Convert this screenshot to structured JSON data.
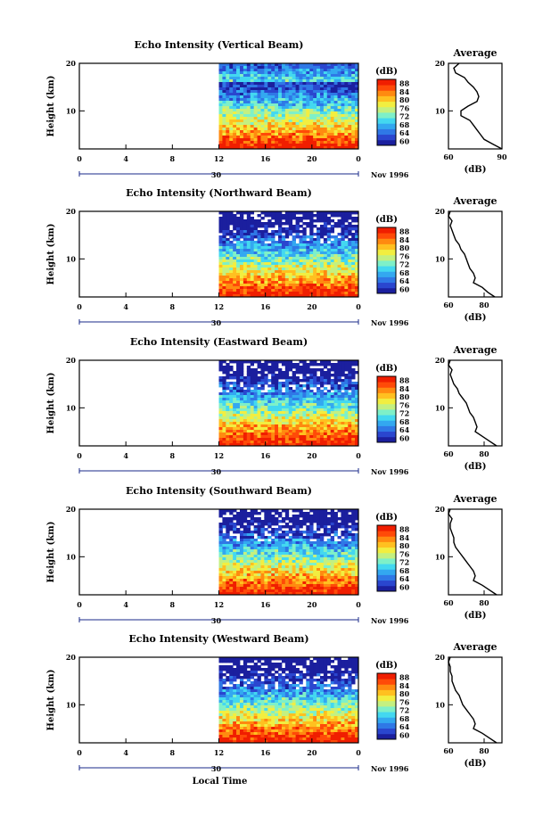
{
  "figure": {
    "xlabel": "Local Time",
    "date_label": "Nov 1996",
    "day_label": "30",
    "cbar_unit": "(dB)",
    "avg_title": "Average",
    "avg_xlabel": "(dB)",
    "y_label": "Height (km)"
  },
  "colorscale": {
    "ticks": [
      "88",
      "84",
      "80",
      "76",
      "72",
      "68",
      "64",
      "60"
    ],
    "colors": [
      "#1b1f9e",
      "#2a46cf",
      "#2f78e6",
      "#33a8f0",
      "#43d8f0",
      "#7ef0c8",
      "#c4f080",
      "#f2ee40",
      "#ffc020",
      "#ff8a10",
      "#ff4a08",
      "#f01e00"
    ]
  },
  "chart_data": [
    {
      "type": "heatmap",
      "title": "Echo Intensity (Vertical Beam)",
      "x_ticks": [
        "0",
        "4",
        "8",
        "12",
        "16",
        "20",
        "0"
      ],
      "y_ticks": [
        "20",
        "10"
      ],
      "ylabel": "Height (km)",
      "xlabel": "",
      "xlim": [
        0,
        24
      ],
      "ylim": [
        2,
        20
      ],
      "data_start_hour": 12,
      "color_range_db": [
        60,
        88
      ],
      "avg_profile": {
        "title": "Average",
        "xlabel": "(dB)",
        "xlim": [
          60,
          90
        ],
        "x_ticks": [
          "60",
          "90"
        ],
        "heights": [
          20,
          19,
          18,
          17,
          16,
          15,
          14,
          13,
          12,
          11,
          10,
          9,
          8,
          7,
          6,
          5,
          4,
          3,
          2
        ],
        "values": [
          66,
          63,
          64,
          69,
          71,
          74,
          76,
          77,
          76,
          71,
          67,
          67,
          72,
          74,
          76,
          78,
          80,
          85,
          90
        ]
      }
    },
    {
      "type": "heatmap",
      "title": "Echo Intensity (Northward Beam)",
      "x_ticks": [
        "0",
        "4",
        "8",
        "12",
        "16",
        "20",
        "0"
      ],
      "y_ticks": [
        "20",
        "10"
      ],
      "ylabel": "Height (km)",
      "xlabel": "",
      "xlim": [
        0,
        24
      ],
      "ylim": [
        2,
        20
      ],
      "data_start_hour": 12,
      "color_range_db": [
        60,
        88
      ],
      "avg_profile": {
        "title": "Average",
        "xlabel": "(dB)",
        "xlim": [
          60,
          90
        ],
        "x_ticks": [
          "60",
          "80"
        ],
        "heights": [
          20,
          19,
          18,
          17,
          16,
          15,
          14,
          13,
          12,
          11,
          10,
          9,
          8,
          7,
          6,
          5,
          4,
          3,
          2
        ],
        "values": [
          61,
          60,
          62,
          61,
          62,
          63,
          64,
          66,
          67,
          69,
          70,
          71,
          72,
          74,
          75,
          74,
          79,
          82,
          86
        ]
      }
    },
    {
      "type": "heatmap",
      "title": "Echo Intensity (Eastward Beam)",
      "x_ticks": [
        "0",
        "4",
        "8",
        "12",
        "16",
        "20",
        "0"
      ],
      "y_ticks": [
        "20",
        "10"
      ],
      "ylabel": "Height (km)",
      "xlabel": "",
      "xlim": [
        0,
        24
      ],
      "ylim": [
        2,
        20
      ],
      "data_start_hour": 12,
      "color_range_db": [
        60,
        88
      ],
      "avg_profile": {
        "title": "Average",
        "xlabel": "(dB)",
        "xlim": [
          60,
          90
        ],
        "x_ticks": [
          "60",
          "80"
        ],
        "heights": [
          20,
          19,
          18,
          17,
          16,
          15,
          14,
          13,
          12,
          11,
          10,
          9,
          8,
          7,
          6,
          5,
          4,
          3,
          2
        ],
        "values": [
          61,
          60,
          62,
          61,
          62,
          63,
          65,
          66,
          68,
          70,
          71,
          72,
          74,
          75,
          76,
          75,
          79,
          83,
          87
        ]
      }
    },
    {
      "type": "heatmap",
      "title": "Echo Intensity (Southward Beam)",
      "x_ticks": [
        "0",
        "4",
        "8",
        "12",
        "16",
        "20",
        "0"
      ],
      "y_ticks": [
        "20",
        "10"
      ],
      "ylabel": "Height (km)",
      "xlabel": "",
      "xlim": [
        0,
        24
      ],
      "ylim": [
        2,
        20
      ],
      "data_start_hour": 12,
      "color_range_db": [
        60,
        88
      ],
      "avg_profile": {
        "title": "Average",
        "xlabel": "(dB)",
        "xlim": [
          60,
          90
        ],
        "x_ticks": [
          "60",
          "80"
        ],
        "heights": [
          20,
          19,
          18,
          17,
          16,
          15,
          14,
          13,
          12,
          11,
          10,
          9,
          8,
          7,
          6,
          5,
          4,
          3,
          2
        ],
        "values": [
          61,
          60,
          62,
          61,
          61,
          62,
          63,
          63,
          64,
          66,
          68,
          70,
          72,
          74,
          75,
          74,
          79,
          83,
          87
        ]
      }
    },
    {
      "type": "heatmap",
      "title": "Echo Intensity (Westward Beam)",
      "x_ticks": [
        "0",
        "4",
        "8",
        "12",
        "16",
        "20",
        "0"
      ],
      "y_ticks": [
        "20",
        "10"
      ],
      "ylabel": "Height (km)",
      "xlabel": "Local Time",
      "xlim": [
        0,
        24
      ],
      "ylim": [
        2,
        20
      ],
      "data_start_hour": 12,
      "color_range_db": [
        60,
        88
      ],
      "avg_profile": {
        "title": "Average",
        "xlabel": "(dB)",
        "xlim": [
          60,
          90
        ],
        "x_ticks": [
          "60",
          "80"
        ],
        "heights": [
          20,
          19,
          18,
          17,
          16,
          15,
          14,
          13,
          12,
          11,
          10,
          9,
          8,
          7,
          6,
          5,
          4,
          3,
          2
        ],
        "values": [
          61,
          60,
          61,
          61,
          62,
          62,
          63,
          64,
          66,
          67,
          68,
          70,
          72,
          74,
          75,
          74,
          79,
          83,
          87
        ]
      }
    }
  ]
}
